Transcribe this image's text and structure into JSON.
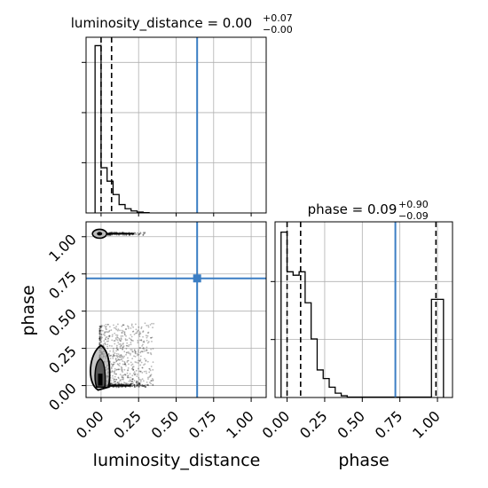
{
  "chart_data": [
    {
      "type": "histogram",
      "panel": "luminosity_distance",
      "title": {
        "lhs": "luminosity_distance = 0.00",
        "upper": "+0.07",
        "lower": "−0.00"
      },
      "xlim": [
        -0.1,
        1.1
      ],
      "bins": [
        {
          "x0": -0.04,
          "x1": 0.0,
          "count": 1.0
        },
        {
          "x0": 0.0,
          "x1": 0.04,
          "count": 0.27
        },
        {
          "x0": 0.04,
          "x1": 0.08,
          "count": 0.19
        },
        {
          "x0": 0.08,
          "x1": 0.12,
          "count": 0.11
        },
        {
          "x0": 0.12,
          "x1": 0.16,
          "count": 0.05
        },
        {
          "x0": 0.16,
          "x1": 0.2,
          "count": 0.025
        },
        {
          "x0": 0.2,
          "x1": 0.24,
          "count": 0.012
        },
        {
          "x0": 0.24,
          "x1": 0.28,
          "count": 0.005
        },
        {
          "x0": 0.28,
          "x1": 0.32,
          "count": 0.002
        }
      ],
      "quantile_lines": [
        0.0,
        0.07
      ],
      "truth": 0.64,
      "grid": true
    },
    {
      "type": "scatter",
      "panel": "2d",
      "xlabel": "luminosity_distance",
      "ylabel": "phase",
      "xlim": [
        -0.1,
        1.1
      ],
      "ylim": [
        -0.08,
        1.1
      ],
      "x_ticks": [
        "0.00",
        "0.25",
        "0.50",
        "0.75",
        "1.00"
      ],
      "y_ticks": [
        "0.00",
        "0.25",
        "0.50",
        "0.75",
        "1.00"
      ],
      "truth": {
        "x": 0.64,
        "y": 0.72
      },
      "clusters": [
        {
          "x_range": [
            0.0,
            0.3
          ],
          "y_center": 1.02,
          "note": "thin band"
        },
        {
          "x_range": [
            -0.03,
            0.35
          ],
          "y_range": [
            0.0,
            0.45
          ],
          "note": "main mass"
        }
      ],
      "grid": true
    },
    {
      "type": "histogram",
      "panel": "phase",
      "title": {
        "lhs": "phase = 0.09",
        "upper": "+0.90",
        "lower": "−0.09"
      },
      "xlabel": "phase",
      "xlim": [
        -0.08,
        1.1
      ],
      "x_ticks": [
        "0.00",
        "0.25",
        "0.50",
        "0.75",
        "1.00"
      ],
      "bins": [
        {
          "x0": -0.04,
          "x1": 0.0,
          "count": 0.96
        },
        {
          "x0": 0.0,
          "x1": 0.04,
          "count": 0.73
        },
        {
          "x0": 0.04,
          "x1": 0.08,
          "count": 0.71
        },
        {
          "x0": 0.08,
          "x1": 0.12,
          "count": 0.73
        },
        {
          "x0": 0.12,
          "x1": 0.16,
          "count": 0.55
        },
        {
          "x0": 0.16,
          "x1": 0.2,
          "count": 0.34
        },
        {
          "x0": 0.2,
          "x1": 0.24,
          "count": 0.16
        },
        {
          "x0": 0.24,
          "x1": 0.28,
          "count": 0.11
        },
        {
          "x0": 0.28,
          "x1": 0.32,
          "count": 0.06
        },
        {
          "x0": 0.32,
          "x1": 0.36,
          "count": 0.025
        },
        {
          "x0": 0.36,
          "x1": 0.4,
          "count": 0.01
        },
        {
          "x0": 0.96,
          "x1": 1.04,
          "count": 0.57
        }
      ],
      "quantile_lines": [
        0.0,
        0.09,
        0.99
      ],
      "truth": 0.72,
      "grid": true
    }
  ]
}
